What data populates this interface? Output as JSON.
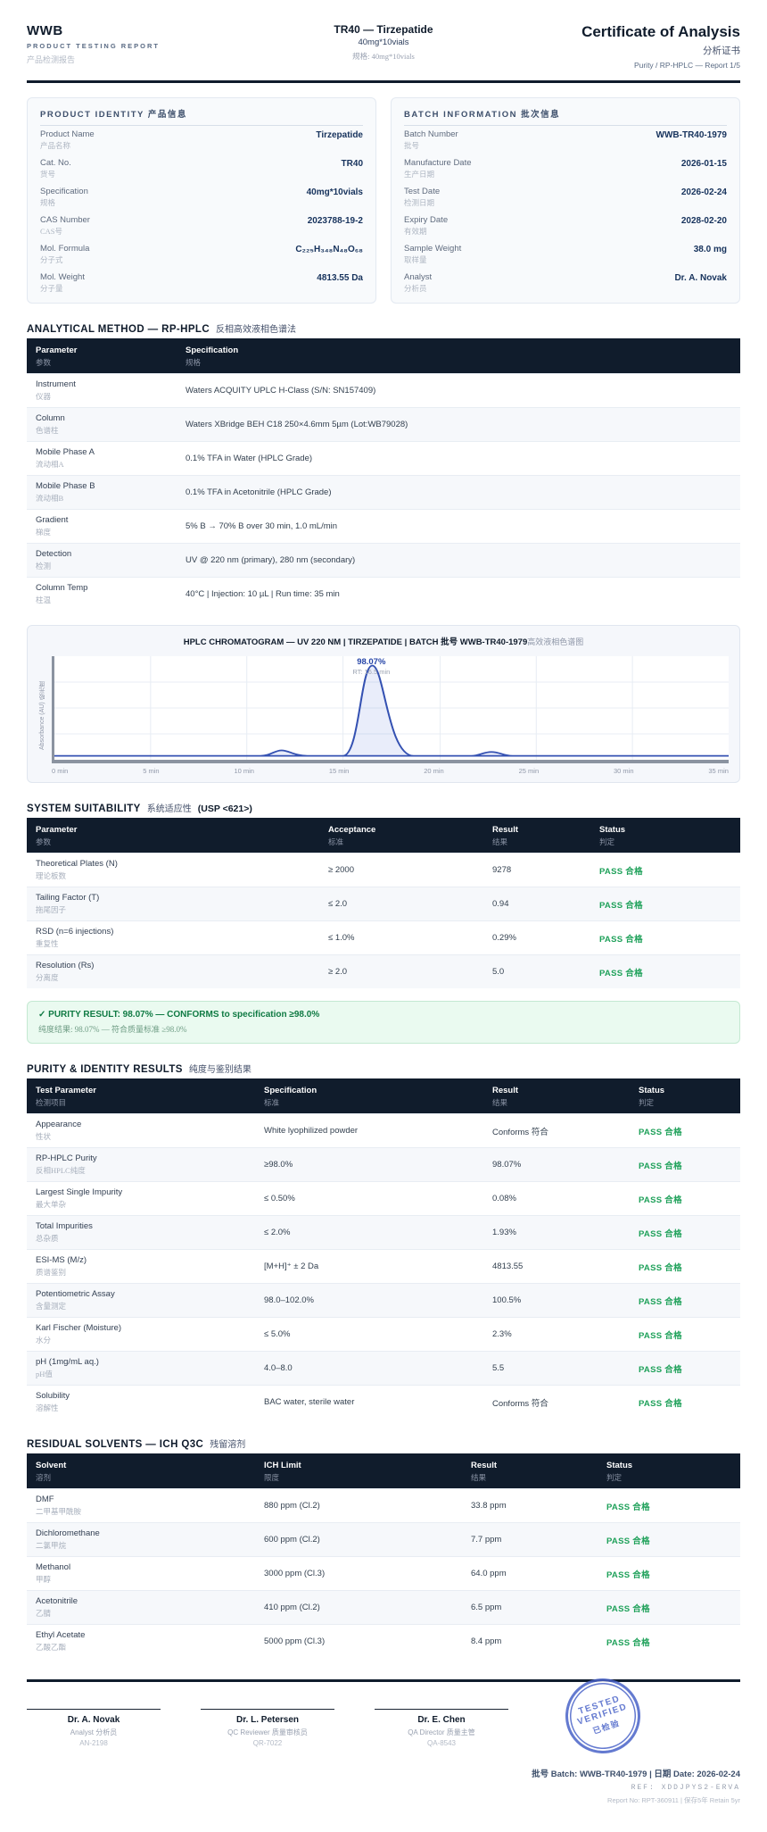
{
  "colors": {
    "ink": "#101c2c",
    "navy": "#16325c",
    "pass": "#1fa15a",
    "lineblue": "#3451b2",
    "stamp": "#4a63c8"
  },
  "header": {
    "brand": "WWB",
    "brand_sub": "PRODUCT TESTING REPORT",
    "brand_zh": "产品检测报告",
    "product_title": "TR40 — Tirzepatide",
    "product_spec": "40mg*10vials",
    "product_spec_zh": "规格: 40mg*10vials",
    "doc_title": "Certificate of Analysis",
    "doc_title_zh": "分析证书",
    "doc_sub": "Purity / RP-HPLC — Report 1/5"
  },
  "product_identity": {
    "title": "PRODUCT IDENTITY 产品信息",
    "rows": [
      {
        "en": "Product Name",
        "zh": "产品名称",
        "value": "Tirzepatide"
      },
      {
        "en": "Cat. No.",
        "zh": "货号",
        "value": "TR40"
      },
      {
        "en": "Specification",
        "zh": "规格",
        "value": "40mg*10vials"
      },
      {
        "en": "CAS Number",
        "zh": "CAS号",
        "value": "2023788-19-2"
      },
      {
        "en": "Mol. Formula",
        "zh": "分子式",
        "value": "C₂₂₅H₃₄₈N₄₈O₆₈"
      },
      {
        "en": "Mol. Weight",
        "zh": "分子量",
        "value": "4813.55 Da"
      }
    ]
  },
  "batch_information": {
    "title": "BATCH INFORMATION 批次信息",
    "rows": [
      {
        "en": "Batch Number",
        "zh": "批号",
        "value": "WWB-TR40-1979"
      },
      {
        "en": "Manufacture Date",
        "zh": "生产日期",
        "value": "2026-01-15"
      },
      {
        "en": "Test Date",
        "zh": "检测日期",
        "value": "2026-02-24"
      },
      {
        "en": "Expiry Date",
        "zh": "有效期",
        "value": "2028-02-20"
      },
      {
        "en": "Sample Weight",
        "zh": "取样量",
        "value": "38.0 mg"
      },
      {
        "en": "Analyst",
        "zh": "分析员",
        "value": "Dr. A. Novak"
      }
    ]
  },
  "analytical_method": {
    "title_en": "ANALYTICAL METHOD — RP-HPLC",
    "title_zh": "反相高效液相色谱法",
    "headers": [
      {
        "en": "Parameter",
        "zh": "参数"
      },
      {
        "en": "Specification",
        "zh": "规格"
      }
    ],
    "rows": [
      {
        "en": "Instrument",
        "zh": "仪器",
        "value": "Waters ACQUITY UPLC H-Class (S/N: SN157409)"
      },
      {
        "en": "Column",
        "zh": "色谱柱",
        "value": "Waters XBridge BEH C18 250×4.6mm 5µm (Lot:WB79028)"
      },
      {
        "en": "Mobile Phase A",
        "zh": "流动相A",
        "value": "0.1% TFA in Water (HPLC Grade)"
      },
      {
        "en": "Mobile Phase B",
        "zh": "流动相B",
        "value": "0.1% TFA in Acetonitrile (HPLC Grade)"
      },
      {
        "en": "Gradient",
        "zh": "梯度",
        "value": "5% B → 70% B over 30 min, 1.0 mL/min"
      },
      {
        "en": "Detection",
        "zh": "检测",
        "value": "UV @ 220 nm (primary), 280 nm (secondary)"
      },
      {
        "en": "Column Temp",
        "zh": "柱温",
        "value": "40°C | Injection: 10 µL | Run time: 35 min"
      }
    ]
  },
  "chart_data": {
    "type": "line",
    "title": "HPLC CHROMATOGRAM — UV 220 NM | TIRZEPATIDE | BATCH 批号 WWB-TR40-1979",
    "title_zh": "高效液相色谱图",
    "ylabel": "Absorbance (AU) 吸光度",
    "x_ticks": [
      "0 min",
      "5 min",
      "10 min",
      "15 min",
      "20 min",
      "25 min",
      "30 min",
      "35 min"
    ],
    "x_range_min": [
      0,
      35
    ],
    "grid": true,
    "line_color": "#3451b2",
    "main_peak": {
      "rt_min": 16.5,
      "area_percent": 98.07,
      "label_percent": "98.07%",
      "label_rt": "RT: 16.5 min"
    },
    "minor_peaks_rt_min": [
      11.8,
      22.8
    ]
  },
  "system_suitability": {
    "title_en": "SYSTEM SUITABILITY",
    "title_zh": "系统适应性",
    "title_suffix": "(USP <621>)",
    "headers": [
      {
        "en": "Parameter",
        "zh": "参数"
      },
      {
        "en": "Acceptance",
        "zh": "标准"
      },
      {
        "en": "Result",
        "zh": "结果"
      },
      {
        "en": "Status",
        "zh": "判定"
      }
    ],
    "rows": [
      {
        "en": "Theoretical Plates (N)",
        "zh": "理论板数",
        "spec": "≥ 2000",
        "result": "9278",
        "status": "PASS 合格"
      },
      {
        "en": "Tailing Factor (T)",
        "zh": "拖尾因子",
        "spec": "≤ 2.0",
        "result": "0.94",
        "status": "PASS 合格"
      },
      {
        "en": "RSD (n=6 injections)",
        "zh": "重复性",
        "spec": "≤ 1.0%",
        "result": "0.29%",
        "status": "PASS 合格"
      },
      {
        "en": "Resolution (Rs)",
        "zh": "分离度",
        "spec": "≥ 2.0",
        "result": "5.0",
        "status": "PASS 合格"
      }
    ]
  },
  "purity_banner": {
    "line_en": "✓ PURITY RESULT: 98.07% — CONFORMS to specification ≥98.0%",
    "line_zh": "纯度结果: 98.07% — 符合质量标准 ≥98.0%"
  },
  "purity_results": {
    "title_en": "PURITY & IDENTITY RESULTS",
    "title_zh": "纯度与鉴别结果",
    "headers": [
      {
        "en": "Test Parameter",
        "zh": "检测项目"
      },
      {
        "en": "Specification",
        "zh": "标准"
      },
      {
        "en": "Result",
        "zh": "结果"
      },
      {
        "en": "Status",
        "zh": "判定"
      }
    ],
    "rows": [
      {
        "en": "Appearance",
        "zh": "性状",
        "spec": "White lyophilized powder",
        "result": "Conforms 符合",
        "status": "PASS 合格"
      },
      {
        "en": "RP-HPLC Purity",
        "zh": "反相HPLC纯度",
        "spec": "≥98.0%",
        "result": "98.07%",
        "status": "PASS 合格"
      },
      {
        "en": "Largest Single Impurity",
        "zh": "最大单杂",
        "spec": "≤ 0.50%",
        "result": "0.08%",
        "status": "PASS 合格"
      },
      {
        "en": "Total Impurities",
        "zh": "总杂质",
        "spec": "≤ 2.0%",
        "result": "1.93%",
        "status": "PASS 合格"
      },
      {
        "en": "ESI-MS (M/z)",
        "zh": "质谱鉴别",
        "spec": "[M+H]⁺ ± 2 Da",
        "result": "4813.55",
        "status": "PASS 合格"
      },
      {
        "en": "Potentiometric Assay",
        "zh": "含量测定",
        "spec": "98.0–102.0%",
        "result": "100.5%",
        "status": "PASS 合格"
      },
      {
        "en": "Karl Fischer (Moisture)",
        "zh": "水分",
        "spec": "≤ 5.0%",
        "result": "2.3%",
        "status": "PASS 合格"
      },
      {
        "en": "pH (1mg/mL aq.)",
        "zh": "pH值",
        "spec": "4.0–8.0",
        "result": "5.5",
        "status": "PASS 合格"
      },
      {
        "en": "Solubility",
        "zh": "溶解性",
        "spec": "BAC water, sterile water",
        "result": "Conforms 符合",
        "status": "PASS 合格"
      }
    ]
  },
  "residual_solvents": {
    "title_en": "RESIDUAL SOLVENTS — ICH Q3C",
    "title_zh": "残留溶剂",
    "headers": [
      {
        "en": "Solvent",
        "zh": "溶剂"
      },
      {
        "en": "ICH Limit",
        "zh": "限度"
      },
      {
        "en": "Result",
        "zh": "结果"
      },
      {
        "en": "Status",
        "zh": "判定"
      }
    ],
    "rows": [
      {
        "en": "DMF",
        "zh": "二甲基甲酰胺",
        "spec": "880 ppm (Cl.2)",
        "result": "33.8 ppm",
        "status": "PASS 合格"
      },
      {
        "en": "Dichloromethane",
        "zh": "二氯甲烷",
        "spec": "600 ppm (Cl.2)",
        "result": "7.7 ppm",
        "status": "PASS 合格"
      },
      {
        "en": "Methanol",
        "zh": "甲醇",
        "spec": "3000 ppm (Cl.3)",
        "result": "64.0 ppm",
        "status": "PASS 合格"
      },
      {
        "en": "Acetonitrile",
        "zh": "乙腈",
        "spec": "410 ppm (Cl.2)",
        "result": "6.5 ppm",
        "status": "PASS 合格"
      },
      {
        "en": "Ethyl Acetate",
        "zh": "乙酸乙酯",
        "spec": "5000 ppm (Cl.3)",
        "result": "8.4 ppm",
        "status": "PASS 合格"
      }
    ]
  },
  "footer": {
    "signers": [
      {
        "name": "Dr. A. Novak",
        "role": "Analyst 分析员",
        "id": "AN-2198"
      },
      {
        "name": "Dr. L. Petersen",
        "role": "QC Reviewer 质量审核员",
        "id": "QR-7022"
      },
      {
        "name": "Dr. E. Chen",
        "role": "QA Director 质量主管",
        "id": "QA-8543"
      }
    ],
    "stamp": {
      "line1": "TESTED",
      "line2": "VERIFIED",
      "line3": "已检验"
    },
    "batch_line": "批号 Batch: WWB-TR40-1979 | 日期 Date: 2026-02-24",
    "ref_line": "REF: XDDJPYS2-ERVA",
    "report_line": "Report No: RPT-360911 | 保存5年 Retain 5yr"
  }
}
